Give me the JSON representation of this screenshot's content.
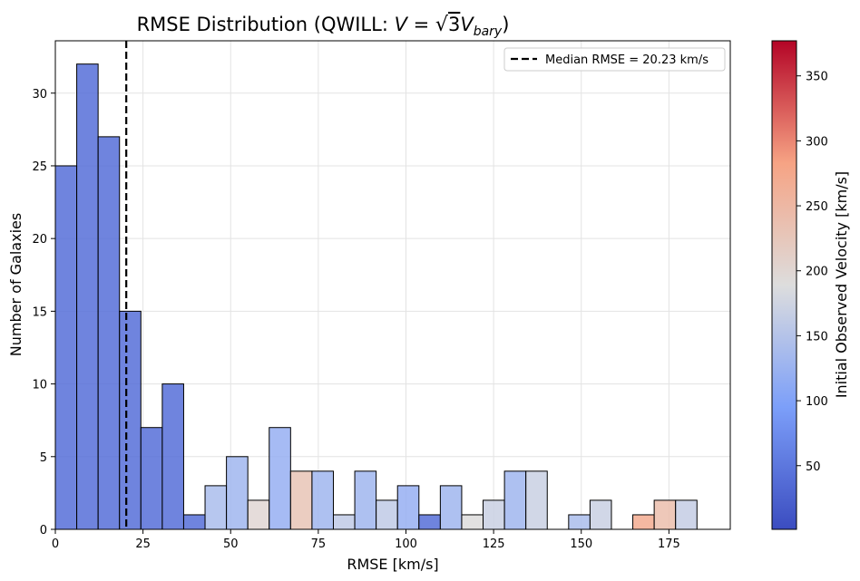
{
  "chart_data": {
    "type": "bar",
    "title": {
      "prefix": "RMSE Distribution (QWILL: ",
      "eq_v": "V",
      "eq_mid": " = ",
      "eq_sqrt_arg": "3",
      "eq_base": "V",
      "eq_sub": "bary",
      "suffix": ")"
    },
    "xlabel": "RMSE [km/s]",
    "ylabel": "Number of Galaxies",
    "xlim": [
      0,
      192.5
    ],
    "ylim": [
      0,
      33.6
    ],
    "xticks": [
      0,
      25,
      50,
      75,
      100,
      125,
      150,
      175
    ],
    "yticks": [
      0,
      5,
      10,
      15,
      20,
      25,
      30
    ],
    "grid": true,
    "bin_width": 6.1,
    "bins": [
      {
        "x0": 0.0,
        "count": 25,
        "velocity": 40
      },
      {
        "x0": 6.1,
        "count": 32,
        "velocity": 40
      },
      {
        "x0": 12.2,
        "count": 27,
        "velocity": 40
      },
      {
        "x0": 18.3,
        "count": 15,
        "velocity": 40
      },
      {
        "x0": 24.4,
        "count": 7,
        "velocity": 40
      },
      {
        "x0": 30.5,
        "count": 10,
        "velocity": 40
      },
      {
        "x0": 36.6,
        "count": 1,
        "velocity": 40
      },
      {
        "x0": 42.7,
        "count": 3,
        "velocity": 140
      },
      {
        "x0": 48.8,
        "count": 5,
        "velocity": 130
      },
      {
        "x0": 54.9,
        "count": 2,
        "velocity": 200
      },
      {
        "x0": 61.0,
        "count": 7,
        "velocity": 120
      },
      {
        "x0": 67.1,
        "count": 4,
        "velocity": 230
      },
      {
        "x0": 73.2,
        "count": 4,
        "velocity": 130
      },
      {
        "x0": 79.3,
        "count": 1,
        "velocity": 160
      },
      {
        "x0": 85.4,
        "count": 4,
        "velocity": 130
      },
      {
        "x0": 91.5,
        "count": 2,
        "velocity": 160
      },
      {
        "x0": 97.6,
        "count": 3,
        "velocity": 120
      },
      {
        "x0": 103.7,
        "count": 1,
        "velocity": 40
      },
      {
        "x0": 109.8,
        "count": 3,
        "velocity": 130
      },
      {
        "x0": 115.9,
        "count": 1,
        "velocity": 190
      },
      {
        "x0": 122.0,
        "count": 2,
        "velocity": 170
      },
      {
        "x0": 128.1,
        "count": 4,
        "velocity": 130
      },
      {
        "x0": 134.2,
        "count": 4,
        "velocity": 170
      },
      {
        "x0": 146.4,
        "count": 1,
        "velocity": 140
      },
      {
        "x0": 152.5,
        "count": 2,
        "velocity": 170
      },
      {
        "x0": 164.7,
        "count": 1,
        "velocity": 270
      },
      {
        "x0": 170.8,
        "count": 2,
        "velocity": 240
      },
      {
        "x0": 176.9,
        "count": 2,
        "velocity": 165
      }
    ],
    "median": {
      "value": 20.23,
      "label": "Median RMSE = 20.23 km/s"
    },
    "legend_placement": "top-right",
    "colorbar": {
      "label": "Initial Observed Velocity [km/s]",
      "cmap": "coolwarm",
      "vmin": 1,
      "vmax": 377,
      "ticks": [
        50,
        100,
        150,
        200,
        250,
        300,
        350
      ]
    }
  }
}
